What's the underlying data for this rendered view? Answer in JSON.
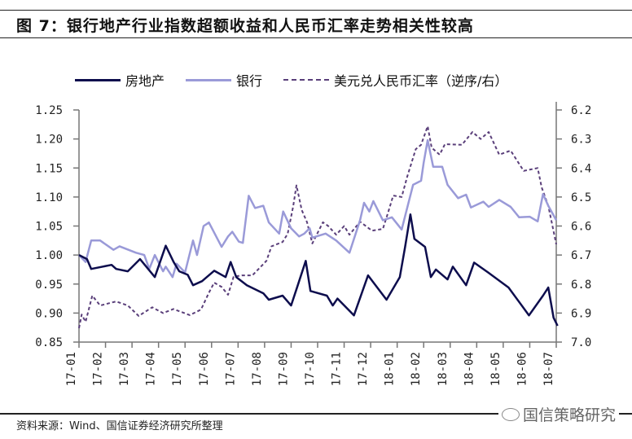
{
  "header": {
    "title": "图 7：银行地产行业指数超额收益和人民币汇率走势相关性较高"
  },
  "footer": {
    "source": "资料来源：Wind、国信证券经济研究所整理",
    "watermark": "国信策略研究"
  },
  "chart_data": {
    "type": "line",
    "title": "图 7：银行地产行业指数超额收益和人民币汇率走势相关性较高",
    "categories": [
      "17-01",
      "17-02",
      "17-03",
      "17-04",
      "17-05",
      "17-06",
      "17-07",
      "17-08",
      "17-09",
      "17-10",
      "17-11",
      "17-12",
      "18-01",
      "18-02",
      "18-03",
      "18-04",
      "18-05",
      "18-06",
      "18-07"
    ],
    "x_unit": "months since 17-01",
    "left_axis": {
      "ylim": [
        0.85,
        1.25
      ],
      "ticks": [
        "0.85",
        "0.90",
        "0.95",
        "1.00",
        "1.05",
        "1.10",
        "1.15",
        "1.20",
        "1.25"
      ]
    },
    "right_axis": {
      "ylim": [
        6.2,
        7.0
      ],
      "reversed": true,
      "ticks": [
        "6.2",
        "6.3",
        "6.4",
        "6.5",
        "6.6",
        "6.7",
        "6.8",
        "6.9",
        "7.0"
      ]
    },
    "legend_position": "top",
    "grid": false,
    "colors": {
      "realestate": "#0d0d4d",
      "bank": "#9a9ad8",
      "fx": "#5a3f7a"
    },
    "series": [
      {
        "name": "房地产",
        "axis": "left",
        "style": "solid",
        "color": "#0d0d4d",
        "x": [
          0,
          0.3,
          0.46,
          1.23,
          1.4,
          1.84,
          2.3,
          2.86,
          3.27,
          3.57,
          3.78,
          4.1,
          4.3,
          4.64,
          5.1,
          5.53,
          5.72,
          5.93,
          6.33,
          6.95,
          7.16,
          7.68,
          8.0,
          8.2,
          8.55,
          8.73,
          9.35,
          9.57,
          9.75,
          10.37,
          10.9,
          11.6,
          12.1,
          12.3,
          12.5,
          12.65,
          13.05,
          13.27,
          13.46,
          13.9,
          14.1,
          14.6,
          14.9,
          15.43,
          16.2,
          16.97,
          17.5,
          17.7,
          17.9,
          18.05
        ],
        "values": [
          1.0,
          0.993,
          0.976,
          0.983,
          0.976,
          0.972,
          0.993,
          0.962,
          1.016,
          0.988,
          0.972,
          0.966,
          0.948,
          0.955,
          0.973,
          0.962,
          0.988,
          0.962,
          0.948,
          0.934,
          0.923,
          0.93,
          0.913,
          0.941,
          0.99,
          0.938,
          0.93,
          0.913,
          0.925,
          0.896,
          0.965,
          0.923,
          0.962,
          1.014,
          1.07,
          1.028,
          1.014,
          0.962,
          0.975,
          0.958,
          0.98,
          0.948,
          0.987,
          0.97,
          0.944,
          0.896,
          0.93,
          0.944,
          0.892,
          0.878
        ]
      },
      {
        "name": "银行",
        "axis": "left",
        "style": "solid",
        "color": "#9a9ad8",
        "x": [
          0,
          0.25,
          0.46,
          0.8,
          1.3,
          1.53,
          2.15,
          2.46,
          2.65,
          2.86,
          3.17,
          3.27,
          3.53,
          3.68,
          4.0,
          4.3,
          4.45,
          4.7,
          4.9,
          5.38,
          5.62,
          5.78,
          6.03,
          6.18,
          6.4,
          6.64,
          6.95,
          7.16,
          7.55,
          7.7,
          8.0,
          8.3,
          8.5,
          8.7,
          8.8,
          9.3,
          9.7,
          10.2,
          10.6,
          10.75,
          10.95,
          11.1,
          11.46,
          11.8,
          12.17,
          12.6,
          12.9,
          13.0,
          13.15,
          13.36,
          13.7,
          13.9,
          14.3,
          14.6,
          14.78,
          15.25,
          15.45,
          15.85,
          16.28,
          16.6,
          17.0,
          17.3,
          17.5,
          17.7,
          18.0
        ],
        "values": [
          1.0,
          0.988,
          1.025,
          1.025,
          1.009,
          1.015,
          1.004,
          1.0,
          0.976,
          1.0,
          0.972,
          0.98,
          0.962,
          0.985,
          0.97,
          1.025,
          1.0,
          1.05,
          1.056,
          1.014,
          1.032,
          1.04,
          1.023,
          1.021,
          1.102,
          1.081,
          1.085,
          1.056,
          1.037,
          1.075,
          1.046,
          1.032,
          1.037,
          1.046,
          1.03,
          1.037,
          1.025,
          1.004,
          1.06,
          1.09,
          1.075,
          1.093,
          1.06,
          1.065,
          1.044,
          1.121,
          1.128,
          1.159,
          1.198,
          1.152,
          1.152,
          1.121,
          1.098,
          1.104,
          1.082,
          1.092,
          1.083,
          1.095,
          1.083,
          1.065,
          1.066,
          1.058,
          1.105,
          1.085,
          1.06
        ]
      },
      {
        "name": "美元兑人民币汇率（逆序/右）",
        "axis": "right",
        "style": "dashed",
        "color": "#5a3f7a",
        "x": [
          0,
          0.1,
          0.25,
          0.5,
          0.8,
          1.4,
          1.84,
          2.25,
          2.76,
          3.17,
          3.56,
          4.18,
          4.6,
          4.9,
          5.1,
          5.38,
          5.62,
          5.83,
          6.14,
          6.54,
          7.07,
          7.26,
          7.68,
          7.87,
          8.08,
          8.2,
          8.4,
          8.6,
          8.8,
          9.2,
          9.4,
          9.7,
          10.0,
          10.2,
          10.6,
          11.05,
          11.46,
          11.67,
          11.85,
          12.17,
          12.38,
          12.7,
          12.9,
          13.15,
          13.3,
          13.6,
          13.8,
          14.44,
          14.84,
          15.15,
          15.45,
          15.85,
          16.28,
          16.77,
          17.3,
          17.45,
          17.7,
          18.0
        ],
        "values": [
          6.952,
          6.905,
          6.93,
          6.84,
          6.874,
          6.86,
          6.874,
          6.91,
          6.88,
          6.9,
          6.886,
          6.907,
          6.888,
          6.83,
          6.795,
          6.81,
          6.837,
          6.775,
          6.77,
          6.77,
          6.72,
          6.67,
          6.655,
          6.627,
          6.532,
          6.46,
          6.545,
          6.587,
          6.66,
          6.587,
          6.6,
          6.63,
          6.6,
          6.63,
          6.585,
          6.616,
          6.61,
          6.55,
          6.495,
          6.5,
          6.43,
          6.335,
          6.32,
          6.256,
          6.33,
          6.354,
          6.318,
          6.32,
          6.276,
          6.3,
          6.276,
          6.354,
          6.34,
          6.41,
          6.4,
          6.467,
          6.53,
          6.663
        ]
      }
    ]
  }
}
